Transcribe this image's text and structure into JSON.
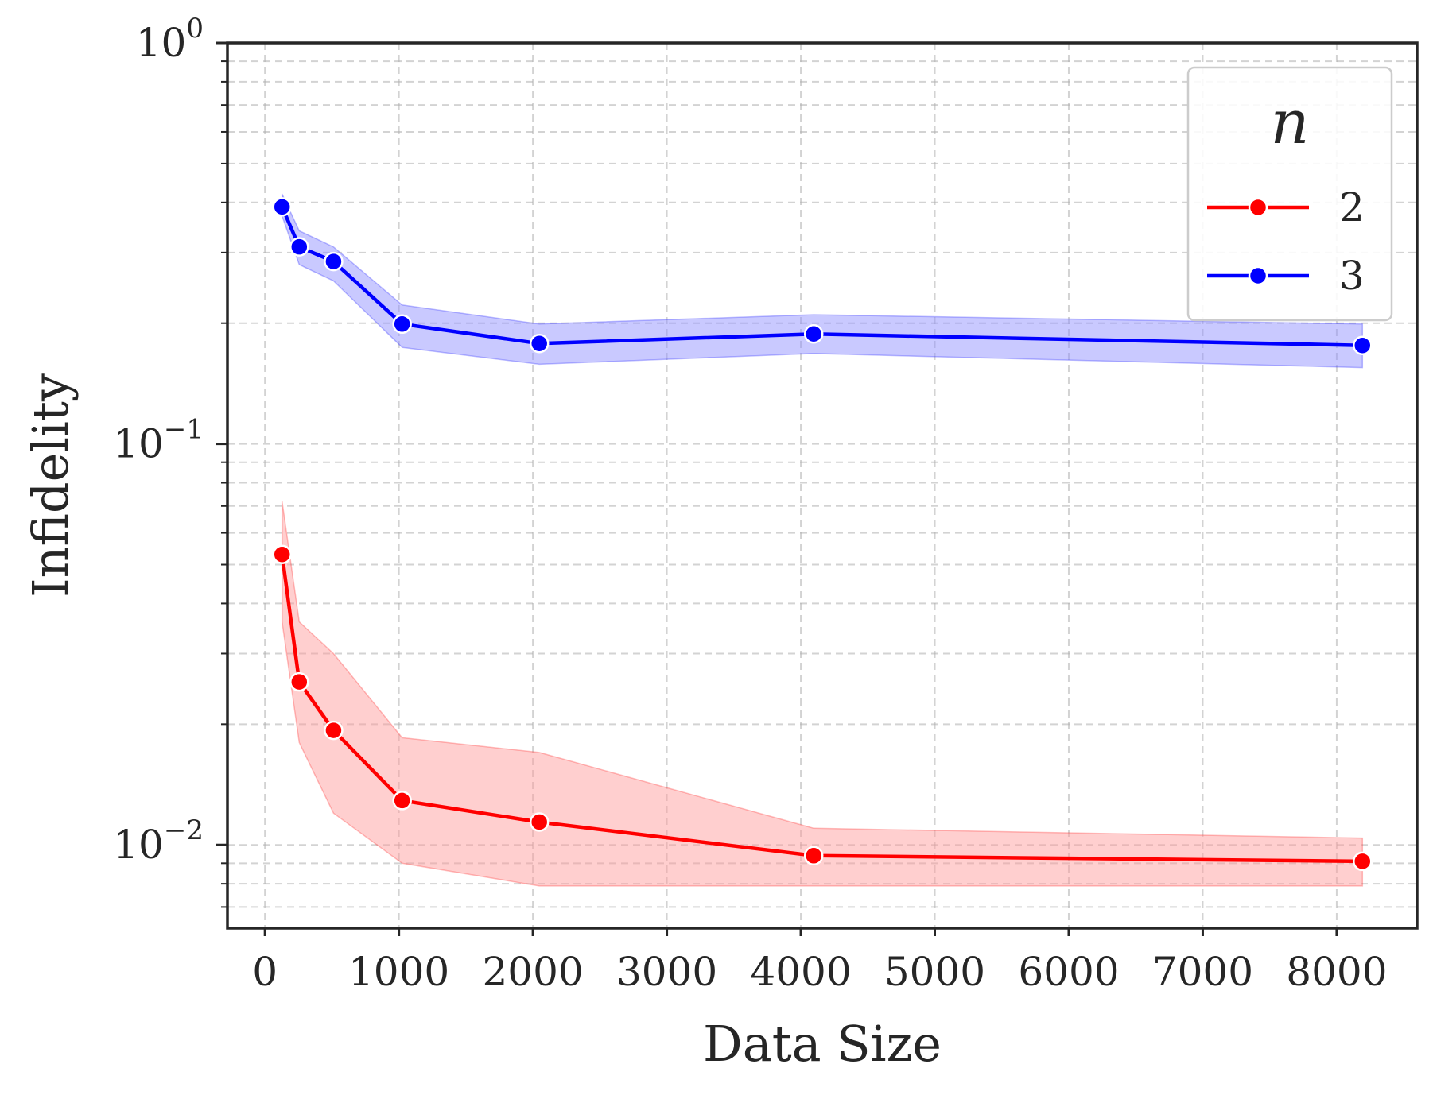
{
  "chart_data": {
    "type": "line",
    "xlabel": "Data Size",
    "ylabel": "Infidelity",
    "xlim": [
      -280,
      8600
    ],
    "ylim": [
      0.0062,
      1.0
    ],
    "yscale": "log",
    "xticks": [
      0,
      1000,
      2000,
      3000,
      4000,
      5000,
      6000,
      7000,
      8000
    ],
    "xtick_labels": [
      "0",
      "1000",
      "2000",
      "3000",
      "4000",
      "5000",
      "6000",
      "7000",
      "8000"
    ],
    "yticks": [
      {
        "value": 1,
        "base": "10",
        "exp": "0"
      },
      {
        "value": 0.1,
        "base": "10",
        "exp": "−1"
      },
      {
        "value": 0.01,
        "base": "10",
        "exp": "−2"
      }
    ],
    "grid": true,
    "legend": {
      "title": "n",
      "placement": "top-right"
    },
    "series": [
      {
        "name": "2",
        "color": "#ff0000",
        "fill": "#ff9a9a",
        "x": [
          128,
          256,
          512,
          1024,
          2048,
          4096,
          8192
        ],
        "values": [
          0.053,
          0.0255,
          0.0193,
          0.0129,
          0.0114,
          0.0094,
          0.0091
        ],
        "lower": [
          0.036,
          0.018,
          0.012,
          0.009,
          0.0079,
          0.0079,
          0.0079
        ],
        "upper": [
          0.072,
          0.036,
          0.03,
          0.0185,
          0.017,
          0.011,
          0.0104
        ]
      },
      {
        "name": "3",
        "color": "#0000ff",
        "fill": "#8f8fff",
        "x": [
          128,
          256,
          512,
          1024,
          2048,
          4096,
          8192
        ],
        "values": [
          0.39,
          0.31,
          0.285,
          0.199,
          0.178,
          0.188,
          0.176
        ],
        "lower": [
          0.37,
          0.28,
          0.255,
          0.174,
          0.158,
          0.168,
          0.155
        ],
        "upper": [
          0.42,
          0.34,
          0.31,
          0.222,
          0.199,
          0.21,
          0.199
        ]
      }
    ]
  }
}
